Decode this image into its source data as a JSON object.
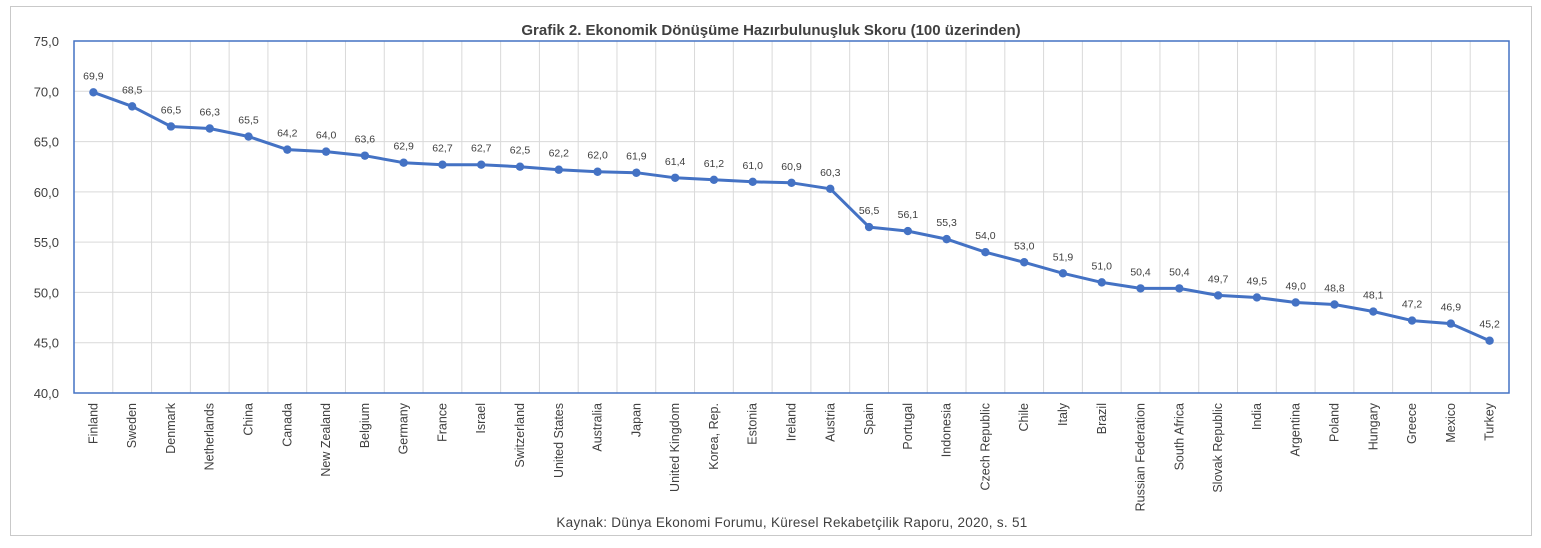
{
  "chart_data": {
    "type": "line",
    "title": "Grafik 2. Ekonomik Dönüşüme Hazırbulunuşluk Skoru (100 üzerinden)",
    "source": "Kaynak: Dünya Ekonomi Forumu,  Küresel Rekabetçilik Raporu, 2020, s. 51",
    "xlabel": "",
    "ylabel": "",
    "ylim": [
      40,
      75
    ],
    "yticks": [
      "40,0",
      "45,0",
      "50,0",
      "55,0",
      "60,0",
      "65,0",
      "70,0",
      "75,0"
    ],
    "grid": true,
    "legend": "none",
    "colors": {
      "series": "#4472c4",
      "grid": "#d9d9d9",
      "text": "#404040"
    },
    "categories": [
      "Finland",
      "Sweden",
      "Denmark",
      "Netherlands",
      "China",
      "Canada",
      "New Zealand",
      "Belgium",
      "Germany",
      "France",
      "Israel",
      "Switzerland",
      "United States",
      "Australia",
      "Japan",
      "United Kingdom",
      "Korea, Rep.",
      "Estonia",
      "Ireland",
      "Austria",
      "Spain",
      "Portugal",
      "Indonesia",
      "Czech Republic",
      "Chile",
      "Italy",
      "Brazil",
      "Russian Federation",
      "South Africa",
      "Slovak Republic",
      "India",
      "Argentina",
      "Poland",
      "Hungary",
      "Greece",
      "Mexico",
      "Turkey"
    ],
    "values": [
      69.9,
      68.5,
      66.5,
      66.3,
      65.5,
      64.2,
      64.0,
      63.6,
      62.9,
      62.7,
      62.7,
      62.5,
      62.2,
      62.0,
      61.9,
      61.4,
      61.2,
      61.0,
      60.9,
      60.3,
      56.5,
      56.1,
      55.3,
      54.0,
      53.0,
      51.9,
      51.0,
      50.4,
      50.4,
      49.7,
      49.5,
      49.0,
      48.8,
      48.1,
      47.2,
      46.9,
      45.2
    ],
    "data_labels": [
      "69,9",
      "68,5",
      "66,5",
      "66,3",
      "65,5",
      "64,2",
      "64,0",
      "63,6",
      "62,9",
      "62,7",
      "62,7",
      "62,5",
      "62,2",
      "62,0",
      "61,9",
      "61,4",
      "61,2",
      "61,0",
      "60,9",
      "60,3",
      "56,5",
      "56,1",
      "55,3",
      "54,0",
      "53,0",
      "51,9",
      "51,0",
      "50,4",
      "50,4",
      "49,7",
      "49,5",
      "49,0",
      "48,8",
      "48,1",
      "47,2",
      "46,9",
      "45,2"
    ]
  }
}
